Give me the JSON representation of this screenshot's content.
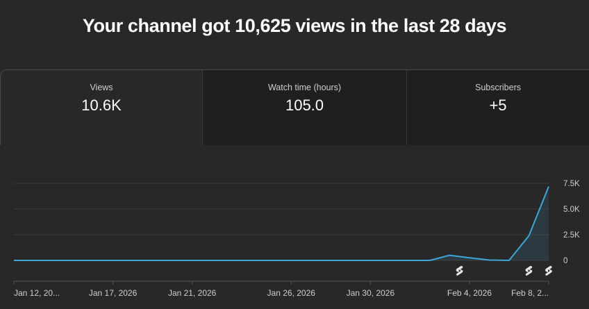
{
  "headline": "Your channel got 10,625 views in the last 28 days",
  "tabs": [
    {
      "label": "Views",
      "value": "10.6K",
      "selected": true
    },
    {
      "label": "Watch time (hours)",
      "value": "105.0",
      "selected": false
    },
    {
      "label": "Subscribers",
      "value": "+5",
      "selected": false
    }
  ],
  "colors": {
    "background": "#282828",
    "tab_inactive": "#1f1f1f",
    "line": "#3ea6d6",
    "grid": "#3c3c3c",
    "axis_text": "#cfcfcf"
  },
  "chart_data": {
    "type": "area",
    "metric": "Views",
    "y_ticks": [
      "7.5K",
      "5.0K",
      "2.5K",
      "0"
    ],
    "ylim": [
      0,
      7500
    ],
    "x_ticks": [
      "Jan 12, 20...",
      "Jan 17, 2026",
      "Jan 21, 2026",
      "Jan 26, 2026",
      "Jan 30, 2026",
      "Feb 4, 2026",
      "Feb 8, 2..."
    ],
    "x_tick_days": [
      0,
      5,
      9,
      14,
      18,
      23,
      27
    ],
    "x_range_days": [
      0,
      27
    ],
    "series": [
      {
        "days": [
          0,
          21,
          22,
          23,
          24,
          25,
          26,
          27
        ],
        "values": [
          0,
          0,
          500,
          250,
          30,
          0,
          2400,
          7200
        ]
      }
    ],
    "shorts_markers_days": [
      22.5,
      26,
      27
    ],
    "grid": true
  }
}
